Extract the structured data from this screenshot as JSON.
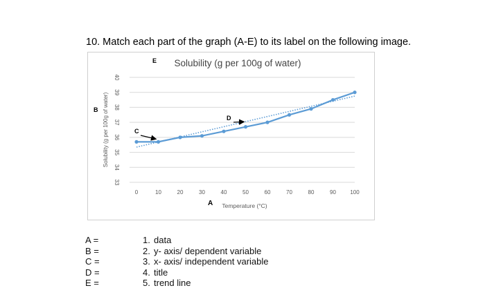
{
  "question": "10. Match each part of the graph (A-E) to its label on the following image.",
  "chart_data": {
    "type": "line",
    "title": "Solubility (g per 100g of water)",
    "xlabel": "Temperature (°C)",
    "ylabel": "Solubility (g per 100g of water)",
    "x": [
      0,
      10,
      20,
      30,
      40,
      50,
      60,
      70,
      80,
      90,
      100
    ],
    "series": [
      {
        "values": [
          35.7,
          35.7,
          36.0,
          36.1,
          36.4,
          36.7,
          37.0,
          37.5,
          37.9,
          38.5,
          39.0
        ],
        "color": "#5b9bd5",
        "markers": true
      },
      {
        "trendline": true,
        "style": "dotted",
        "from": [
          0,
          35.35
        ],
        "to": [
          100,
          38.75
        ],
        "color": "#5b9bd5"
      }
    ],
    "xticks": [
      "0",
      "10",
      "20",
      "30",
      "40",
      "50",
      "60",
      "70",
      "80",
      "90",
      "100"
    ],
    "yticks": [
      "33",
      "34",
      "35",
      "36",
      "37",
      "38",
      "39",
      "40"
    ],
    "xlim": [
      0,
      100
    ],
    "ylim": [
      33,
      40
    ],
    "grid": "horizontal",
    "annotations": [
      {
        "letter": "E",
        "target": "title"
      },
      {
        "letter": "B",
        "target": "y-axis"
      },
      {
        "letter": "A",
        "target": "x-axis"
      },
      {
        "letter": "C",
        "target": "data",
        "arrow_to": [
          10,
          35.7
        ]
      },
      {
        "letter": "D",
        "target": "trend line",
        "arrow_to": [
          50,
          36.9
        ]
      }
    ]
  },
  "matches": [
    "A =",
    "B =",
    "C =",
    "D =",
    "E ="
  ],
  "options": [
    {
      "num": "1.",
      "text": "data"
    },
    {
      "num": "2.",
      "text": "y- axis/ dependent variable"
    },
    {
      "num": "3.",
      "text": "x- axis/ independent variable"
    },
    {
      "num": "4.",
      "text": "title"
    },
    {
      "num": "5.",
      "text": "trend line"
    }
  ],
  "colors": {
    "series": "#5b9bd5",
    "grid": "#d9d9d9",
    "tick_text": "#595959"
  }
}
